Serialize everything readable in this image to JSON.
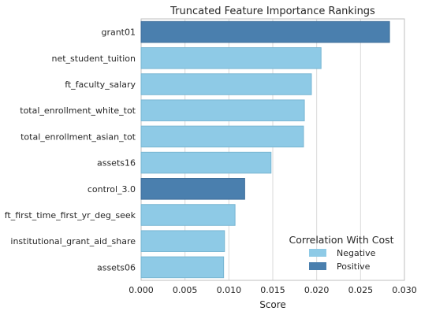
{
  "chart_data": {
    "type": "bar",
    "orientation": "horizontal",
    "title": "Truncated Feature Importance Rankings",
    "xlabel": "Score",
    "ylabel": "",
    "xlim": [
      0.0,
      0.03
    ],
    "x_ticks": [
      "0.000",
      "0.005",
      "0.010",
      "0.015",
      "0.020",
      "0.025",
      "0.030"
    ],
    "x_tick_values": [
      0.0,
      0.005,
      0.01,
      0.015,
      0.02,
      0.025,
      0.03
    ],
    "grid": true,
    "legend": {
      "title": "Correlation With Cost",
      "placement": "bottom-right",
      "entries": [
        {
          "label": "Negative",
          "color": "#8ecae6"
        },
        {
          "label": "Positive",
          "color": "#4a7fae"
        }
      ]
    },
    "categories": [
      "grant01",
      "net_student_tuition",
      "ft_faculty_salary",
      "total_enrollment_white_tot",
      "total_enrollment_asian_tot",
      "assets16",
      "control_3.0",
      "ft_first_time_first_yr_deg_seek",
      "institutional_grant_aid_share",
      "assets06"
    ],
    "values": [
      0.0283,
      0.0205,
      0.0194,
      0.0186,
      0.0185,
      0.0148,
      0.0118,
      0.0107,
      0.0095,
      0.0094
    ],
    "correlation": [
      "Positive",
      "Negative",
      "Negative",
      "Negative",
      "Negative",
      "Negative",
      "Positive",
      "Negative",
      "Negative",
      "Negative"
    ]
  },
  "colors": {
    "negative": "#8ecae6",
    "positive": "#4a7fae",
    "negative_edge": "#79b6d3",
    "positive_edge": "#3d6d99",
    "grid": "#d9d9d9",
    "axis_border": "#bfbfbf",
    "text": "#262626"
  }
}
